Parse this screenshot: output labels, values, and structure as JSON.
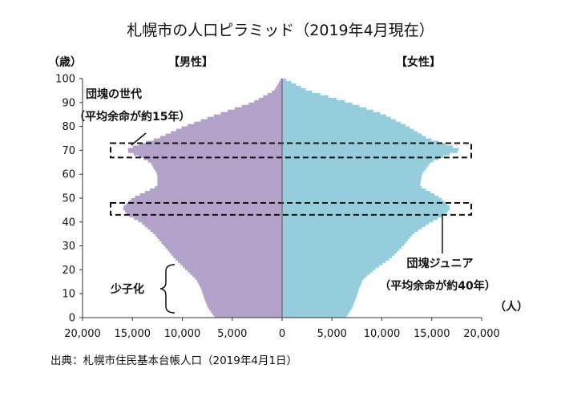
{
  "title": "札幌市の人口ピラミッド（2019年4月現在）",
  "source": "出典：札幌市住民基本台帳人口（2019年4月1日）",
  "chart_data": {
    "type": "bar",
    "orientation": "horizontal-population-pyramid",
    "title": "札幌市の人口ピラミッド（2019年4月現在）",
    "ylabel": "（歳）",
    "xlabel": "（人）",
    "male_label": "【男性】",
    "female_label": "【女性】",
    "xlim": [
      -20000,
      20000
    ],
    "ylim": [
      0,
      100
    ],
    "x_ticks": [
      -20000,
      -15000,
      -10000,
      -5000,
      0,
      5000,
      10000,
      15000,
      20000
    ],
    "x_tick_labels": [
      "20,000",
      "15,000",
      "10,000",
      "5,000",
      "0",
      "5,000",
      "10,000",
      "15,000",
      "20,000"
    ],
    "y_ticks": [
      0,
      10,
      20,
      30,
      40,
      50,
      60,
      70,
      80,
      90,
      100
    ],
    "grid": false,
    "colors": {
      "male": "#b3a1c9",
      "female": "#96cddd",
      "axis": "#333333"
    },
    "age_keypoints": [
      0,
      4,
      8,
      12,
      16,
      20,
      25,
      30,
      35,
      40,
      43,
      46,
      50,
      55,
      60,
      65,
      68,
      70,
      72,
      75,
      80,
      85,
      90,
      95,
      100
    ],
    "series": [
      {
        "name": "【男性】",
        "values": [
          6700,
          7400,
          7800,
          8100,
          8600,
          9600,
          10800,
          11800,
          12800,
          14200,
          15500,
          16000,
          15000,
          12500,
          12500,
          13200,
          14600,
          15700,
          14700,
          12500,
          9800,
          6500,
          3000,
          800,
          100
        ]
      },
      {
        "name": "【女性】",
        "values": [
          6400,
          7000,
          7400,
          7700,
          8100,
          9200,
          10900,
          12100,
          13100,
          14900,
          16300,
          16900,
          15900,
          13800,
          14000,
          14900,
          16400,
          18000,
          16800,
          14600,
          12600,
          10200,
          6700,
          2600,
          200
        ]
      }
    ],
    "annotations": [
      {
        "text": "団塊の世代",
        "target_age": 70
      },
      {
        "text": "（平均余命が約15年）",
        "target_age": 70
      },
      {
        "text": "団塊ジュニア",
        "target_age": 45
      },
      {
        "text": "（平均余命が約40年）",
        "target_age": 45
      },
      {
        "text": "少子化",
        "target_age_range": [
          0,
          20
        ]
      }
    ],
    "highlight_bands": [
      [
        67,
        73
      ],
      [
        43,
        48
      ]
    ]
  }
}
